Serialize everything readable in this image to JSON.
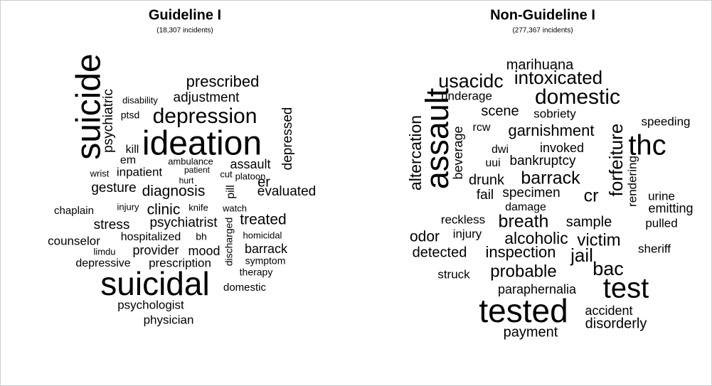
{
  "chart_data": [
    {
      "type": "wordcloud",
      "title": "Guideline I",
      "subtitle": "(18,307 incidents)",
      "words": [
        "suicide",
        "psychiatric",
        "prescribed",
        "disability",
        "adjustment",
        "ptsd",
        "depression",
        "depressed",
        "kill",
        "ideation",
        "em",
        "ambulance",
        "assault",
        "wrist",
        "inpatient",
        "patient",
        "cut",
        "platoon",
        "hurt",
        "er",
        "gesture",
        "diagnosis",
        "pill",
        "evaluated",
        "chaplain",
        "injury",
        "clinic",
        "knife",
        "watch",
        "discharged",
        "treated",
        "stress",
        "psychiatrist",
        "counselor",
        "hospitalized",
        "bh",
        "homicidal",
        "limdu",
        "provider",
        "mood",
        "barrack",
        "depressive",
        "prescription",
        "symptom",
        "therapy",
        "suicidal",
        "domestic",
        "psychologist",
        "physician"
      ]
    },
    {
      "type": "wordcloud",
      "title": "Non-Guideline I",
      "subtitle": "(277,367 incidents)",
      "words": [
        "marihuana",
        "usacidc",
        "intoxicated",
        "underage",
        "domestic",
        "altercation",
        "assault",
        "beverage",
        "scene",
        "sobriety",
        "rcw",
        "garnishment",
        "forfeiture",
        "thc",
        "speeding",
        "dwi",
        "invoked",
        "uui",
        "bankruptcy",
        "rendering",
        "drunk",
        "barrack",
        "fail",
        "specimen",
        "cr",
        "urine",
        "emitting",
        "damage",
        "reckless",
        "breath",
        "sample",
        "pulled",
        "odor",
        "injury",
        "alcoholic",
        "victim",
        "detected",
        "inspection",
        "jail",
        "sheriff",
        "struck",
        "probable",
        "bac",
        "paraphernalia",
        "test",
        "tested",
        "accident",
        "disorderly",
        "payment"
      ]
    }
  ]
}
